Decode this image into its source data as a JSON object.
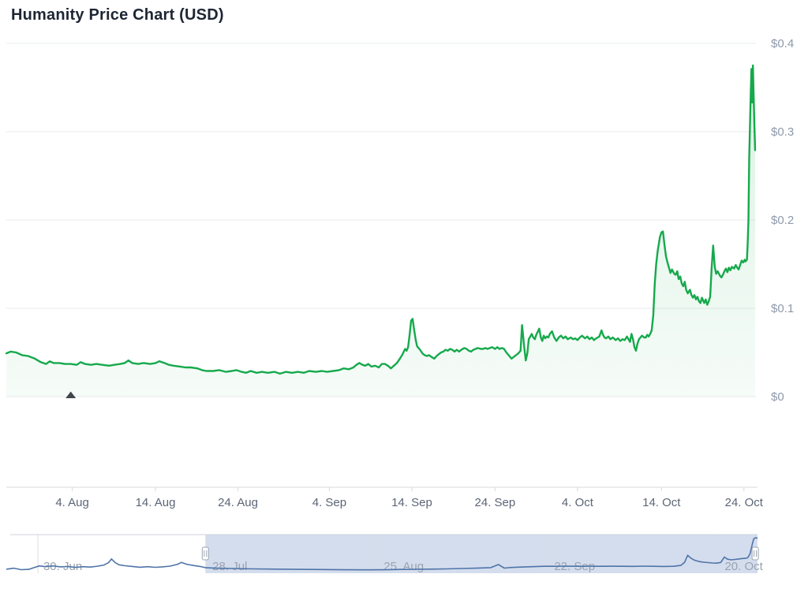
{
  "title": "Humanity Price Chart (USD)",
  "chart_data": {
    "type": "line",
    "title": "Humanity Price Chart (USD)",
    "currency": "USD",
    "series_name": "Humanity price",
    "line_color": "#16A94C",
    "area_top_color": "rgba(22,169,76,0.16)",
    "area_bottom_color": "rgba(22,169,76,0.04)",
    "grid": "horizontal",
    "legend": "none",
    "ylim": [
      0,
      0.4
    ],
    "y_ticks": [
      {
        "label": "$0",
        "value": 0
      },
      {
        "label": "$0.1",
        "value": 0.1
      },
      {
        "label": "$0.2",
        "value": 0.2
      },
      {
        "label": "$0.3",
        "value": 0.3
      },
      {
        "label": "$0.4",
        "value": 0.4
      }
    ],
    "x_ticks": [
      {
        "label": "4. Aug",
        "pos": 0.088
      },
      {
        "label": "14. Aug",
        "pos": 0.199
      },
      {
        "label": "24. Aug",
        "pos": 0.309
      },
      {
        "label": "4. Sep",
        "pos": 0.431
      },
      {
        "label": "14. Sep",
        "pos": 0.541
      },
      {
        "label": "24. Sep",
        "pos": 0.652
      },
      {
        "label": "4. Oct",
        "pos": 0.762
      },
      {
        "label": "14. Oct",
        "pos": 0.874
      },
      {
        "label": "24. Oct",
        "pos": 0.984
      }
    ],
    "annotation_marker": {
      "shape": "triangle-up",
      "pos": 0.086,
      "value": 0,
      "color": "#41464D"
    },
    "points": [
      [
        0.0,
        0.049
      ],
      [
        0.006,
        0.051
      ],
      [
        0.013,
        0.05
      ],
      [
        0.021,
        0.047
      ],
      [
        0.029,
        0.046
      ],
      [
        0.038,
        0.043
      ],
      [
        0.046,
        0.039
      ],
      [
        0.053,
        0.037
      ],
      [
        0.058,
        0.04
      ],
      [
        0.063,
        0.038
      ],
      [
        0.071,
        0.038
      ],
      [
        0.078,
        0.037
      ],
      [
        0.086,
        0.037
      ],
      [
        0.094,
        0.036
      ],
      [
        0.099,
        0.039
      ],
      [
        0.105,
        0.037
      ],
      [
        0.113,
        0.036
      ],
      [
        0.12,
        0.037
      ],
      [
        0.128,
        0.036
      ],
      [
        0.137,
        0.035
      ],
      [
        0.144,
        0.036
      ],
      [
        0.152,
        0.037
      ],
      [
        0.158,
        0.038
      ],
      [
        0.163,
        0.041
      ],
      [
        0.168,
        0.038
      ],
      [
        0.176,
        0.037
      ],
      [
        0.183,
        0.038
      ],
      [
        0.192,
        0.037
      ],
      [
        0.199,
        0.038
      ],
      [
        0.204,
        0.04
      ],
      [
        0.211,
        0.038
      ],
      [
        0.217,
        0.036
      ],
      [
        0.223,
        0.035
      ],
      [
        0.232,
        0.034
      ],
      [
        0.239,
        0.033
      ],
      [
        0.246,
        0.033
      ],
      [
        0.255,
        0.032
      ],
      [
        0.261,
        0.03
      ],
      [
        0.267,
        0.029
      ],
      [
        0.276,
        0.029
      ],
      [
        0.284,
        0.03
      ],
      [
        0.293,
        0.028
      ],
      [
        0.301,
        0.029
      ],
      [
        0.307,
        0.03
      ],
      [
        0.314,
        0.028
      ],
      [
        0.32,
        0.027
      ],
      [
        0.326,
        0.029
      ],
      [
        0.334,
        0.027
      ],
      [
        0.341,
        0.028
      ],
      [
        0.349,
        0.027
      ],
      [
        0.358,
        0.028
      ],
      [
        0.365,
        0.026
      ],
      [
        0.373,
        0.028
      ],
      [
        0.381,
        0.027
      ],
      [
        0.389,
        0.028
      ],
      [
        0.397,
        0.027
      ],
      [
        0.404,
        0.029
      ],
      [
        0.413,
        0.028
      ],
      [
        0.421,
        0.029
      ],
      [
        0.428,
        0.028
      ],
      [
        0.436,
        0.029
      ],
      [
        0.444,
        0.03
      ],
      [
        0.45,
        0.032
      ],
      [
        0.457,
        0.031
      ],
      [
        0.463,
        0.033
      ],
      [
        0.467,
        0.036
      ],
      [
        0.471,
        0.038
      ],
      [
        0.475,
        0.036
      ],
      [
        0.479,
        0.035
      ],
      [
        0.483,
        0.037
      ],
      [
        0.487,
        0.034
      ],
      [
        0.492,
        0.035
      ],
      [
        0.497,
        0.033
      ],
      [
        0.501,
        0.037
      ],
      [
        0.505,
        0.037
      ],
      [
        0.509,
        0.035
      ],
      [
        0.513,
        0.032
      ],
      [
        0.517,
        0.035
      ],
      [
        0.521,
        0.038
      ],
      [
        0.525,
        0.043
      ],
      [
        0.528,
        0.047
      ],
      [
        0.532,
        0.054
      ],
      [
        0.534,
        0.052
      ],
      [
        0.536,
        0.056
      ],
      [
        0.538,
        0.07
      ],
      [
        0.54,
        0.086
      ],
      [
        0.542,
        0.088
      ],
      [
        0.544,
        0.076
      ],
      [
        0.546,
        0.065
      ],
      [
        0.548,
        0.057
      ],
      [
        0.552,
        0.053
      ],
      [
        0.555,
        0.049
      ],
      [
        0.558,
        0.047
      ],
      [
        0.561,
        0.046
      ],
      [
        0.564,
        0.047
      ],
      [
        0.567,
        0.045
      ],
      [
        0.571,
        0.043
      ],
      [
        0.574,
        0.046
      ],
      [
        0.577,
        0.048
      ],
      [
        0.58,
        0.05
      ],
      [
        0.583,
        0.051
      ],
      [
        0.586,
        0.053
      ],
      [
        0.589,
        0.052
      ],
      [
        0.592,
        0.054
      ],
      [
        0.595,
        0.053
      ],
      [
        0.598,
        0.051
      ],
      [
        0.601,
        0.053
      ],
      [
        0.604,
        0.051
      ],
      [
        0.607,
        0.053
      ],
      [
        0.611,
        0.055
      ],
      [
        0.614,
        0.054
      ],
      [
        0.617,
        0.052
      ],
      [
        0.62,
        0.051
      ],
      [
        0.623,
        0.053
      ],
      [
        0.626,
        0.054
      ],
      [
        0.629,
        0.055
      ],
      [
        0.633,
        0.054
      ],
      [
        0.636,
        0.054
      ],
      [
        0.639,
        0.055
      ],
      [
        0.642,
        0.054
      ],
      [
        0.645,
        0.055
      ],
      [
        0.648,
        0.056
      ],
      [
        0.652,
        0.054
      ],
      [
        0.655,
        0.056
      ],
      [
        0.658,
        0.054
      ],
      [
        0.661,
        0.055
      ],
      [
        0.664,
        0.054
      ],
      [
        0.667,
        0.05
      ],
      [
        0.671,
        0.046
      ],
      [
        0.674,
        0.043
      ],
      [
        0.677,
        0.045
      ],
      [
        0.68,
        0.047
      ],
      [
        0.683,
        0.049
      ],
      [
        0.686,
        0.052
      ],
      [
        0.688,
        0.081
      ],
      [
        0.691,
        0.056
      ],
      [
        0.693,
        0.041
      ],
      [
        0.695,
        0.049
      ],
      [
        0.697,
        0.065
      ],
      [
        0.699,
        0.068
      ],
      [
        0.701,
        0.071
      ],
      [
        0.703,
        0.067
      ],
      [
        0.705,
        0.065
      ],
      [
        0.707,
        0.07
      ],
      [
        0.711,
        0.077
      ],
      [
        0.713,
        0.067
      ],
      [
        0.715,
        0.063
      ],
      [
        0.717,
        0.069
      ],
      [
        0.719,
        0.066
      ],
      [
        0.721,
        0.068
      ],
      [
        0.723,
        0.067
      ],
      [
        0.725,
        0.071
      ],
      [
        0.728,
        0.074
      ],
      [
        0.731,
        0.067
      ],
      [
        0.734,
        0.063
      ],
      [
        0.737,
        0.067
      ],
      [
        0.74,
        0.069
      ],
      [
        0.743,
        0.066
      ],
      [
        0.746,
        0.068
      ],
      [
        0.749,
        0.065
      ],
      [
        0.753,
        0.067
      ],
      [
        0.756,
        0.065
      ],
      [
        0.759,
        0.066
      ],
      [
        0.762,
        0.064
      ],
      [
        0.765,
        0.067
      ],
      [
        0.768,
        0.069
      ],
      [
        0.772,
        0.066
      ],
      [
        0.775,
        0.068
      ],
      [
        0.778,
        0.065
      ],
      [
        0.781,
        0.067
      ],
      [
        0.784,
        0.064
      ],
      [
        0.787,
        0.066
      ],
      [
        0.791,
        0.068
      ],
      [
        0.794,
        0.075
      ],
      [
        0.796,
        0.07
      ],
      [
        0.798,
        0.067
      ],
      [
        0.8,
        0.066
      ],
      [
        0.803,
        0.068
      ],
      [
        0.806,
        0.065
      ],
      [
        0.809,
        0.067
      ],
      [
        0.813,
        0.064
      ],
      [
        0.816,
        0.066
      ],
      [
        0.819,
        0.063
      ],
      [
        0.822,
        0.065
      ],
      [
        0.825,
        0.064
      ],
      [
        0.828,
        0.068
      ],
      [
        0.832,
        0.062
      ],
      [
        0.834,
        0.071
      ],
      [
        0.836,
        0.065
      ],
      [
        0.838,
        0.056
      ],
      [
        0.84,
        0.052
      ],
      [
        0.842,
        0.06
      ],
      [
        0.844,
        0.065
      ],
      [
        0.846,
        0.067
      ],
      [
        0.848,
        0.069
      ],
      [
        0.851,
        0.067
      ],
      [
        0.853,
        0.067
      ],
      [
        0.855,
        0.07
      ],
      [
        0.857,
        0.068
      ],
      [
        0.859,
        0.071
      ],
      [
        0.861,
        0.075
      ],
      [
        0.863,
        0.092
      ],
      [
        0.865,
        0.128
      ],
      [
        0.867,
        0.15
      ],
      [
        0.869,
        0.165
      ],
      [
        0.872,
        0.181
      ],
      [
        0.874,
        0.186
      ],
      [
        0.876,
        0.187
      ],
      [
        0.878,
        0.172
      ],
      [
        0.88,
        0.159
      ],
      [
        0.882,
        0.152
      ],
      [
        0.884,
        0.146
      ],
      [
        0.886,
        0.14
      ],
      [
        0.888,
        0.144
      ],
      [
        0.891,
        0.139
      ],
      [
        0.893,
        0.138
      ],
      [
        0.895,
        0.142
      ],
      [
        0.897,
        0.133
      ],
      [
        0.899,
        0.136
      ],
      [
        0.901,
        0.128
      ],
      [
        0.903,
        0.125
      ],
      [
        0.905,
        0.13
      ],
      [
        0.907,
        0.121
      ],
      [
        0.909,
        0.117
      ],
      [
        0.912,
        0.121
      ],
      [
        0.914,
        0.115
      ],
      [
        0.916,
        0.112
      ],
      [
        0.918,
        0.115
      ],
      [
        0.92,
        0.11
      ],
      [
        0.922,
        0.113
      ],
      [
        0.924,
        0.108
      ],
      [
        0.926,
        0.106
      ],
      [
        0.928,
        0.112
      ],
      [
        0.931,
        0.106
      ],
      [
        0.933,
        0.11
      ],
      [
        0.935,
        0.104
      ],
      [
        0.937,
        0.108
      ],
      [
        0.939,
        0.113
      ],
      [
        0.941,
        0.146
      ],
      [
        0.943,
        0.171
      ],
      [
        0.945,
        0.147
      ],
      [
        0.947,
        0.139
      ],
      [
        0.949,
        0.142
      ],
      [
        0.952,
        0.137
      ],
      [
        0.954,
        0.135
      ],
      [
        0.956,
        0.138
      ],
      [
        0.958,
        0.142
      ],
      [
        0.96,
        0.145
      ],
      [
        0.962,
        0.141
      ],
      [
        0.964,
        0.146
      ],
      [
        0.966,
        0.143
      ],
      [
        0.968,
        0.147
      ],
      [
        0.971,
        0.145
      ],
      [
        0.973,
        0.149
      ],
      [
        0.975,
        0.146
      ],
      [
        0.977,
        0.144
      ],
      [
        0.979,
        0.149
      ],
      [
        0.981,
        0.154
      ],
      [
        0.983,
        0.152
      ],
      [
        0.985,
        0.155
      ],
      [
        0.986,
        0.153
      ],
      [
        0.988,
        0.155
      ],
      [
        0.989,
        0.172
      ],
      [
        0.99,
        0.199
      ],
      [
        0.991,
        0.271
      ],
      [
        0.993,
        0.342
      ],
      [
        0.994,
        0.371
      ],
      [
        0.995,
        0.333
      ],
      [
        0.996,
        0.375
      ],
      [
        0.997,
        0.342
      ],
      [
        0.998,
        0.306
      ],
      [
        0.999,
        0.279
      ]
    ],
    "navigator": {
      "line_color": "#4F74A8",
      "selection_color": "rgba(102,133,194,0.28)",
      "outline_color": "#CCD2DA",
      "selected_range": [
        0.265,
        1.0
      ],
      "handles": [
        0.265,
        0.997
      ],
      "x_ticks": [
        {
          "label": "30. Jun",
          "pos": 0.042
        },
        {
          "label": "28. Jul",
          "pos": 0.267
        },
        {
          "label": "25. Aug",
          "pos": 0.495
        },
        {
          "label": "22. Sep",
          "pos": 0.722
        },
        {
          "label": "20. Oct",
          "pos": 0.949
        }
      ],
      "points": [
        [
          0.0,
          0.035
        ],
        [
          0.01,
          0.046
        ],
        [
          0.02,
          0.03
        ],
        [
          0.03,
          0.033
        ],
        [
          0.038,
          0.055
        ],
        [
          0.044,
          0.07
        ],
        [
          0.052,
          0.062
        ],
        [
          0.062,
          0.07
        ],
        [
          0.072,
          0.06
        ],
        [
          0.082,
          0.064
        ],
        [
          0.092,
          0.054
        ],
        [
          0.102,
          0.062
        ],
        [
          0.112,
          0.058
        ],
        [
          0.122,
          0.068
        ],
        [
          0.13,
          0.08
        ],
        [
          0.136,
          0.105
        ],
        [
          0.14,
          0.145
        ],
        [
          0.145,
          0.105
        ],
        [
          0.15,
          0.082
        ],
        [
          0.158,
          0.072
        ],
        [
          0.168,
          0.064
        ],
        [
          0.178,
          0.056
        ],
        [
          0.188,
          0.062
        ],
        [
          0.198,
          0.055
        ],
        [
          0.208,
          0.06
        ],
        [
          0.218,
          0.068
        ],
        [
          0.228,
          0.088
        ],
        [
          0.233,
          0.108
        ],
        [
          0.24,
          0.088
        ],
        [
          0.25,
          0.074
        ],
        [
          0.258,
          0.064
        ],
        [
          0.266,
          0.05
        ],
        [
          0.28,
          0.046
        ],
        [
          0.3,
          0.042
        ],
        [
          0.33,
          0.038
        ],
        [
          0.36,
          0.036
        ],
        [
          0.39,
          0.033
        ],
        [
          0.42,
          0.031
        ],
        [
          0.45,
          0.029
        ],
        [
          0.48,
          0.028
        ],
        [
          0.505,
          0.029
        ],
        [
          0.525,
          0.032
        ],
        [
          0.545,
          0.034
        ],
        [
          0.565,
          0.036
        ],
        [
          0.585,
          0.038
        ],
        [
          0.605,
          0.042
        ],
        [
          0.625,
          0.046
        ],
        [
          0.645,
          0.052
        ],
        [
          0.655,
          0.085
        ],
        [
          0.663,
          0.047
        ],
        [
          0.672,
          0.053
        ],
        [
          0.685,
          0.058
        ],
        [
          0.7,
          0.062
        ],
        [
          0.715,
          0.066
        ],
        [
          0.73,
          0.066
        ],
        [
          0.745,
          0.067
        ],
        [
          0.76,
          0.066
        ],
        [
          0.775,
          0.067
        ],
        [
          0.79,
          0.066
        ],
        [
          0.805,
          0.067
        ],
        [
          0.82,
          0.066
        ],
        [
          0.835,
          0.065
        ],
        [
          0.85,
          0.068
        ],
        [
          0.862,
          0.066
        ],
        [
          0.875,
          0.064
        ],
        [
          0.888,
          0.066
        ],
        [
          0.898,
          0.075
        ],
        [
          0.903,
          0.11
        ],
        [
          0.907,
          0.185
        ],
        [
          0.911,
          0.155
        ],
        [
          0.916,
          0.132
        ],
        [
          0.922,
          0.118
        ],
        [
          0.928,
          0.11
        ],
        [
          0.934,
          0.106
        ],
        [
          0.94,
          0.102
        ],
        [
          0.946,
          0.1
        ],
        [
          0.951,
          0.108
        ],
        [
          0.956,
          0.165
        ],
        [
          0.96,
          0.142
        ],
        [
          0.965,
          0.136
        ],
        [
          0.97,
          0.14
        ],
        [
          0.975,
          0.145
        ],
        [
          0.98,
          0.15
        ],
        [
          0.984,
          0.152
        ],
        [
          0.987,
          0.158
        ],
        [
          0.99,
          0.2
        ],
        [
          0.993,
          0.3
        ],
        [
          0.995,
          0.36
        ],
        [
          0.997,
          0.372
        ],
        [
          1.0,
          0.368
        ]
      ]
    },
    "style": {
      "grid_color": "#E9EBEE",
      "axis_line_color": "#D6DADE",
      "x_label_color": "#5C6676",
      "y_label_color": "#8E99A9",
      "nav_label_color": "#9AA3AE",
      "handle_fill": "#FFFFFF",
      "handle_stroke": "#9AA4B2",
      "title_color": "#1D2633"
    }
  }
}
